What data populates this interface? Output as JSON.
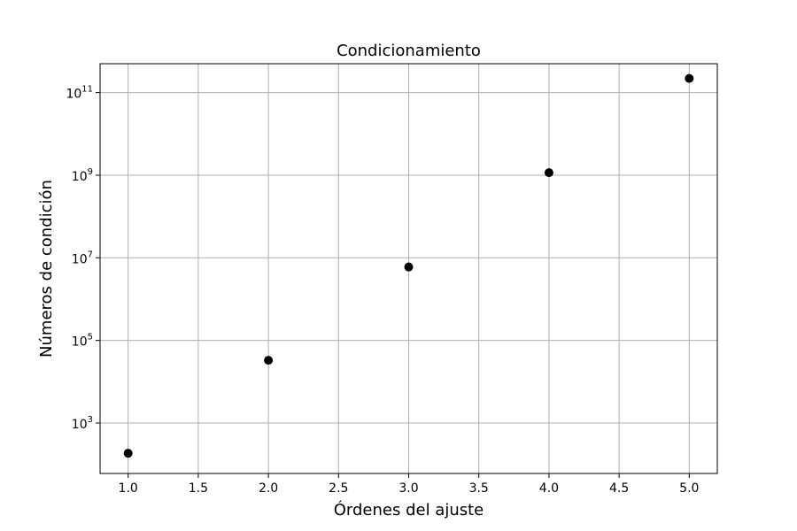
{
  "chart_data": {
    "type": "scatter",
    "title": "Condicionamiento",
    "xlabel": "Órdenes del ajuste",
    "ylabel": "Números de condición",
    "xscale": "linear",
    "yscale": "log",
    "xlim": [
      0.8,
      5.2
    ],
    "ylim": [
      60,
      500000000000
    ],
    "grid": true,
    "x_ticks": [
      1.0,
      1.5,
      2.0,
      2.5,
      3.0,
      3.5,
      4.0,
      4.5,
      5.0
    ],
    "x_tick_labels": [
      "1.0",
      "1.5",
      "2.0",
      "2.5",
      "3.0",
      "3.5",
      "4.0",
      "4.5",
      "5.0"
    ],
    "y_ticks": [
      1000,
      100000,
      10000000,
      1000000000,
      100000000000
    ],
    "y_tick_labels": [
      {
        "base": "10",
        "exp": "3"
      },
      {
        "base": "10",
        "exp": "5"
      },
      {
        "base": "10",
        "exp": "7"
      },
      {
        "base": "10",
        "exp": "9"
      },
      {
        "base": "10",
        "exp": "11"
      }
    ],
    "marker_color": "#000000",
    "grid_color": "#b0b0b0",
    "points": [
      {
        "x": 1,
        "y": 185
      },
      {
        "x": 2,
        "y": 33000
      },
      {
        "x": 3,
        "y": 6000000
      },
      {
        "x": 4,
        "y": 1150000000
      },
      {
        "x": 5,
        "y": 220000000000
      }
    ]
  }
}
